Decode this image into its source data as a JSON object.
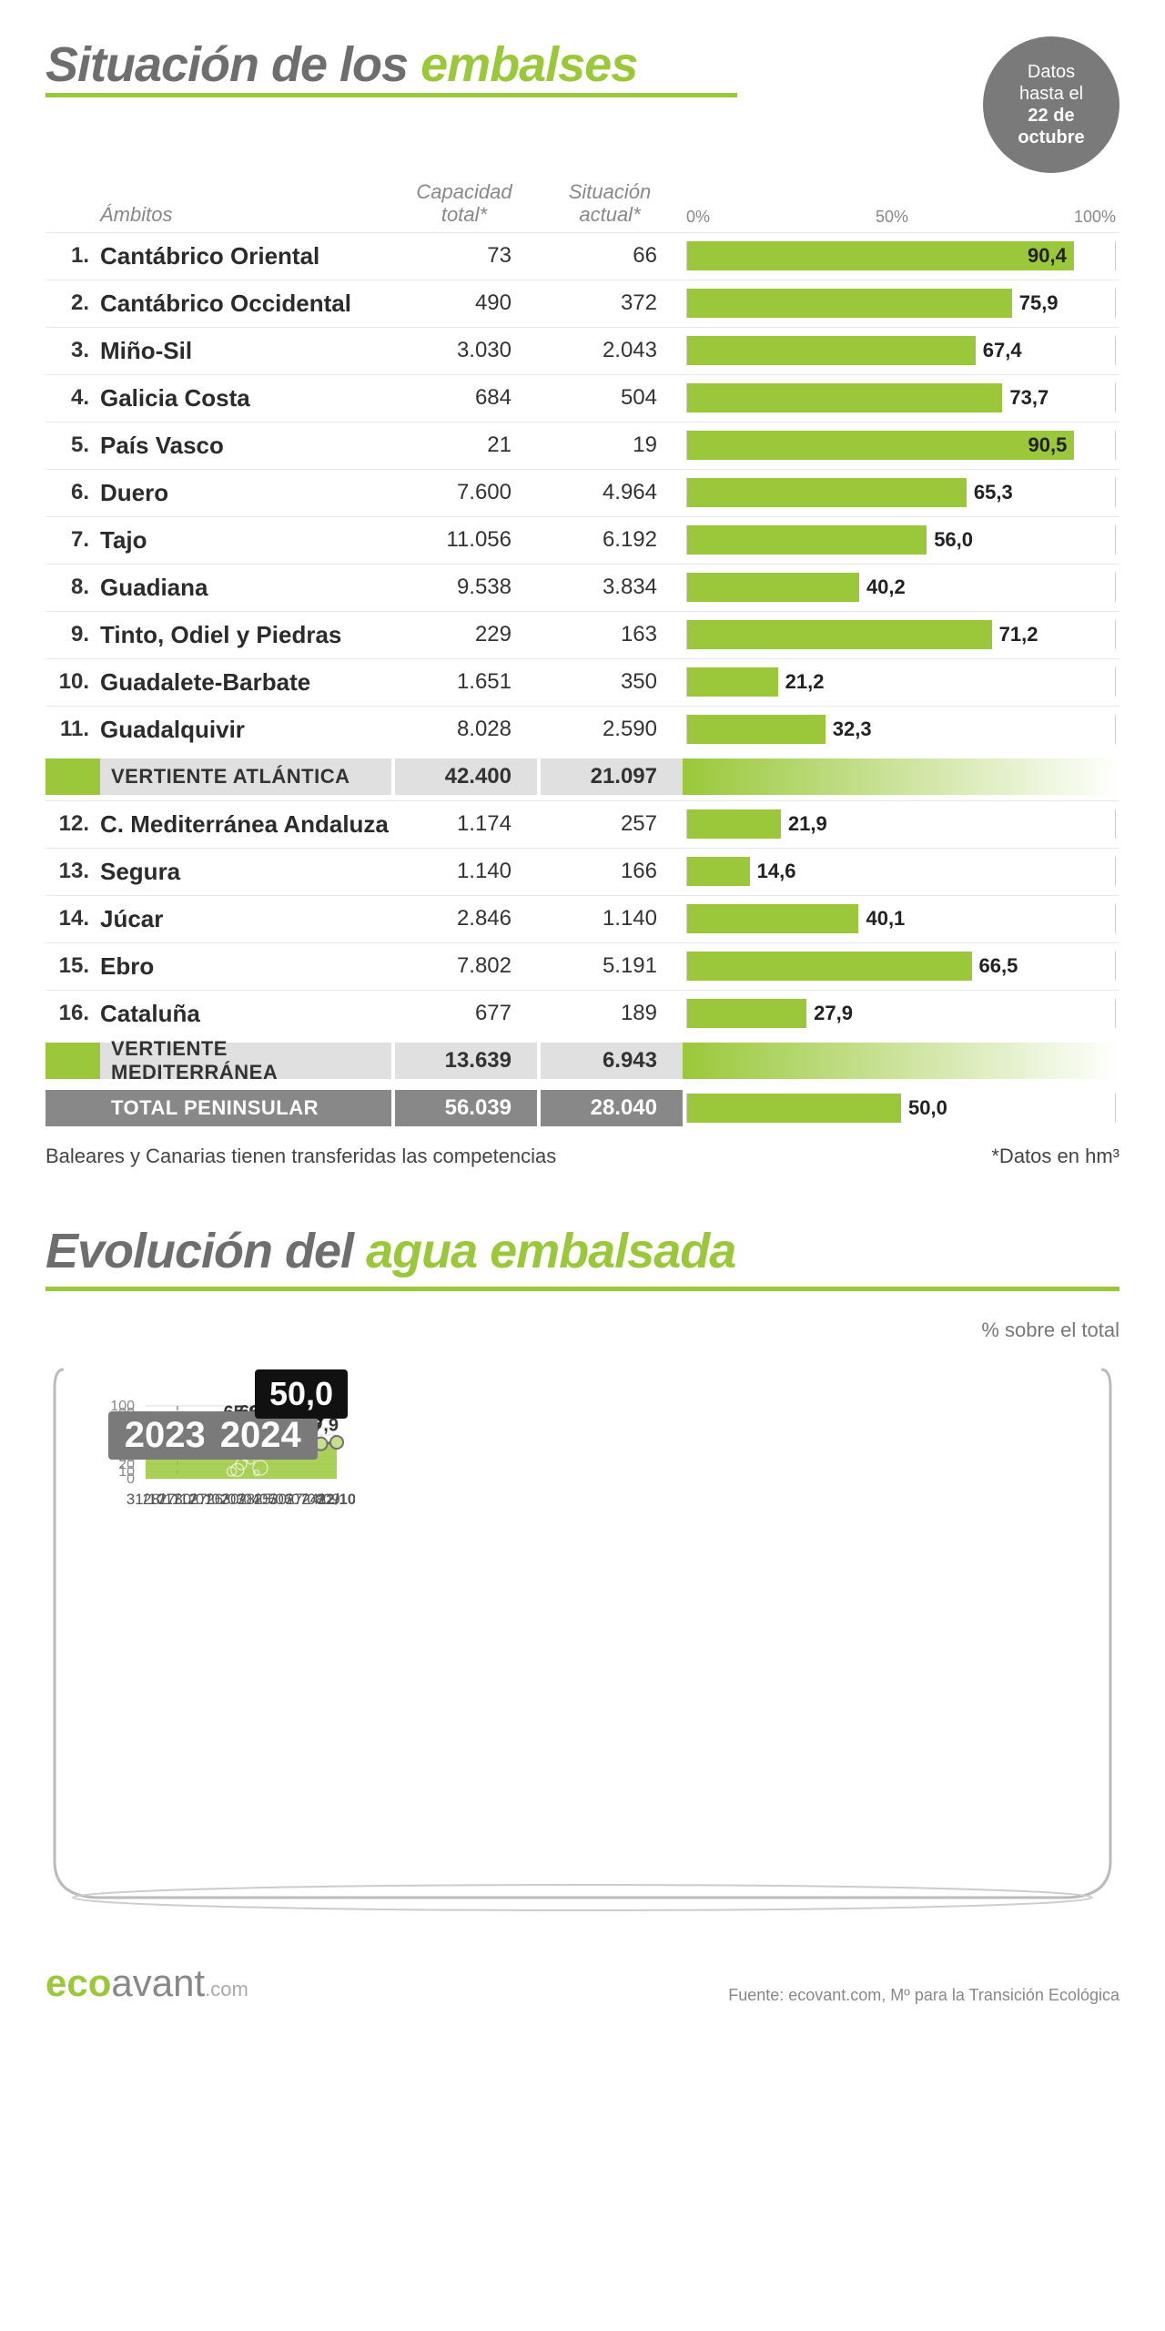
{
  "colors": {
    "accent": "#9ac83a",
    "gray_text": "#6e6e6e",
    "badge_gray": "#7a7a7a",
    "total_gray": "#888888",
    "black": "#111111"
  },
  "header": {
    "title_pre": "Situación de los ",
    "title_hl": "embalses",
    "badge_l1": "Datos",
    "badge_l2": "hasta el",
    "badge_l3": "22 de",
    "badge_l4": "octubre"
  },
  "table": {
    "col_ambitos": "Ámbitos",
    "col_capacidad": "Capacidad total*",
    "col_situacion": "Situación actual*",
    "scale_0": "0%",
    "scale_50": "50%",
    "scale_100": "100%",
    "rows": [
      {
        "n": "1.",
        "name": "Cantábrico Oriental",
        "cap": "73",
        "cur": "66",
        "pct": 90.4,
        "label": "90,4"
      },
      {
        "n": "2.",
        "name": "Cantábrico Occidental",
        "cap": "490",
        "cur": "372",
        "pct": 75.9,
        "label": "75,9"
      },
      {
        "n": "3.",
        "name": "Miño-Sil",
        "cap": "3.030",
        "cur": "2.043",
        "pct": 67.4,
        "label": "67,4"
      },
      {
        "n": "4.",
        "name": "Galicia Costa",
        "cap": "684",
        "cur": "504",
        "pct": 73.7,
        "label": "73,7"
      },
      {
        "n": "5.",
        "name": "País Vasco",
        "cap": "21",
        "cur": "19",
        "pct": 90.5,
        "label": "90,5"
      },
      {
        "n": "6.",
        "name": "Duero",
        "cap": "7.600",
        "cur": "4.964",
        "pct": 65.3,
        "label": "65,3"
      },
      {
        "n": "7.",
        "name": "Tajo",
        "cap": "11.056",
        "cur": "6.192",
        "pct": 56.0,
        "label": "56,0"
      },
      {
        "n": "8.",
        "name": "Guadiana",
        "cap": "9.538",
        "cur": "3.834",
        "pct": 40.2,
        "label": "40,2"
      },
      {
        "n": "9.",
        "name": "Tinto, Odiel y Piedras",
        "cap": "229",
        "cur": "163",
        "pct": 71.2,
        "label": "71,2"
      },
      {
        "n": "10.",
        "name": "Guadalete-Barbate",
        "cap": "1.651",
        "cur": "350",
        "pct": 21.2,
        "label": "21,2"
      },
      {
        "n": "11.",
        "name": "Guadalquivir",
        "cap": "8.028",
        "cur": "2.590",
        "pct": 32.3,
        "label": "32,3"
      }
    ],
    "summary1": {
      "name": "VERTIENTE ATLÁNTICA",
      "cap": "42.400",
      "cur": "21.097"
    },
    "rows2": [
      {
        "n": "12.",
        "name": "C. Mediterránea Andaluza",
        "cap": "1.174",
        "cur": "257",
        "pct": 21.9,
        "label": "21,9"
      },
      {
        "n": "13.",
        "name": "Segura",
        "cap": "1.140",
        "cur": "166",
        "pct": 14.6,
        "label": "14,6"
      },
      {
        "n": "14.",
        "name": "Júcar",
        "cap": "2.846",
        "cur": "1.140",
        "pct": 40.1,
        "label": "40,1"
      },
      {
        "n": "15.",
        "name": "Ebro",
        "cap": "7.802",
        "cur": "5.191",
        "pct": 66.5,
        "label": "66,5"
      },
      {
        "n": "16.",
        "name": "Cataluña",
        "cap": "677",
        "cur": "189",
        "pct": 27.9,
        "label": "27,9"
      }
    ],
    "summary2": {
      "name": "VERTIENTE MEDITERRÁNEA",
      "cap": "13.639",
      "cur": "6.943"
    },
    "total": {
      "name": "TOTAL PENINSULAR",
      "cap": "56.039",
      "cur": "28.040",
      "pct": 50.0,
      "label": "50,0"
    },
    "footnote_left": "Baleares y Canarias tienen transferidas las competencias",
    "footnote_right": "*Datos en hm³"
  },
  "evolution": {
    "title_pre": "Evolución del ",
    "title_hl": "agua embalsada",
    "sub": "% sobre el total",
    "ylim": [
      0,
      100
    ],
    "ytick_step": 10,
    "year1_label": "2023",
    "year2_label": "2024",
    "final_label": "50,0",
    "x_labels": [
      "31/10",
      "28/11",
      "27/12",
      "30/01",
      "27/02",
      "26/03",
      "30/04",
      "28/05",
      "25/06",
      "30/07",
      "27/08",
      "24/09",
      "22/10"
    ],
    "values": [
      37.9,
      43.4,
      46.1,
      50.8,
      52.9,
      57.8,
      65.9,
      66.3,
      63.7,
      57.2,
      50.9,
      47.9,
      50.0
    ],
    "value_labels": [
      "37,9",
      "43,4",
      "46,1",
      "50,8",
      "52,9",
      "57,8",
      "65,9",
      "66,3",
      "63,7",
      "57,2",
      "50,9",
      "47,9",
      "50,0"
    ],
    "line_color": "#6e6e6e",
    "fill_color": "#9ac83a",
    "marker_fill": "#c7e08b",
    "grid_color": "#dddddd"
  },
  "footer": {
    "logo_eco": "eco",
    "logo_avant": "avant",
    "logo_dom": ".com",
    "source": "Fuente: ecovant.com, Mº para la Transición Ecológica"
  }
}
